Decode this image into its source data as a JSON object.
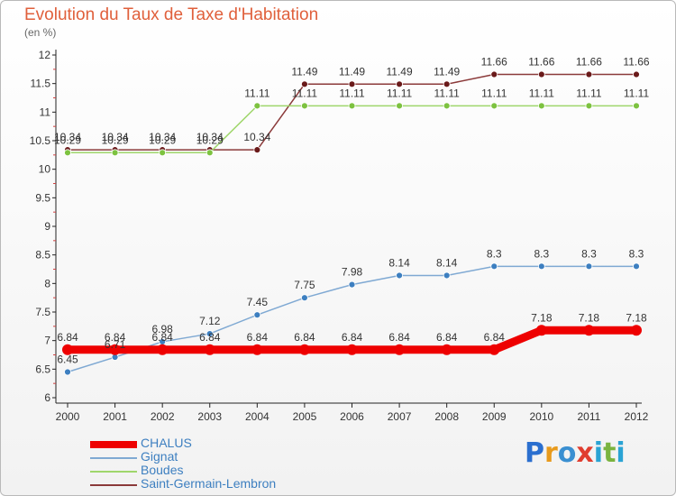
{
  "colors": {
    "title": "#e0603c",
    "axis": "#222222",
    "label": "#333333"
  },
  "logo": {
    "letters": [
      {
        "ch": "P",
        "color": "#2b6fcf"
      },
      {
        "ch": "r",
        "color": "#e89a1c"
      },
      {
        "ch": "o",
        "color": "#3a8fd1"
      },
      {
        "ch": "x",
        "color": "#e03d2f"
      },
      {
        "ch": "i",
        "color": "#2aa3d4"
      },
      {
        "ch": "t",
        "color": "#7ab33f"
      },
      {
        "ch": "i",
        "color": "#2aa3d4"
      }
    ]
  },
  "chart_data": {
    "type": "line",
    "title": "Evolution du Taux de Taxe d'Habitation",
    "subtitle": "(en %)",
    "x": [
      "2000",
      "2001",
      "2002",
      "2003",
      "2004",
      "2005",
      "2006",
      "2007",
      "2008",
      "2009",
      "2010",
      "2011",
      "2012"
    ],
    "ylim": [
      6,
      12
    ],
    "yticks": [
      "6",
      "6.5",
      "7",
      "7.5",
      "8",
      "8.5",
      "9",
      "9.5",
      "10",
      "10.5",
      "11",
      "11.5",
      "12"
    ],
    "legend_position": "bottom-left",
    "series": [
      {
        "name": "CHALUS",
        "color": "#ee0000",
        "marker_color": "#ee0000",
        "values": [
          6.84,
          6.84,
          6.84,
          6.84,
          6.84,
          6.84,
          6.84,
          6.84,
          6.84,
          6.84,
          7.18,
          7.18,
          7.18
        ],
        "labels": [
          "6.84",
          "6.84",
          "6.84",
          "6.84",
          "6.84",
          "6.84",
          "6.84",
          "6.84",
          "6.84",
          "6.84",
          "7.18",
          "7.18",
          "7.18"
        ],
        "thick": true
      },
      {
        "name": "Gignat",
        "color": "#7fa9d3",
        "marker_color": "#3d7fc0",
        "values": [
          6.45,
          6.71,
          6.98,
          7.12,
          7.45,
          7.75,
          7.98,
          8.14,
          8.14,
          8.3,
          8.3,
          8.3,
          8.3
        ],
        "labels": [
          "6.45",
          "6.71",
          "6.98",
          "7.12",
          "7.45",
          "7.75",
          "7.98",
          "8.14",
          "8.14",
          "8.3",
          "8.3",
          "8.3",
          "8.3"
        ],
        "thick": false
      },
      {
        "name": "Boudes",
        "color": "#9fd66b",
        "marker_color": "#7dc240",
        "values": [
          10.29,
          10.29,
          10.29,
          10.29,
          11.11,
          11.11,
          11.11,
          11.11,
          11.11,
          11.11,
          11.11,
          11.11,
          11.11
        ],
        "labels": [
          "10.29",
          "10.29",
          "10.29",
          "10.29",
          "11.11",
          "11.11",
          "11.11",
          "11.11",
          "11.11",
          "11.11",
          "11.11",
          "11.11",
          "11.11"
        ],
        "thick": false
      },
      {
        "name": "Saint-Germain-Lembron",
        "color": "#8b3a3a",
        "marker_color": "#6a1a1a",
        "values": [
          10.34,
          10.34,
          10.34,
          10.34,
          10.34,
          11.49,
          11.49,
          11.49,
          11.49,
          11.66,
          11.66,
          11.66,
          11.66
        ],
        "labels": [
          "10.34",
          "10.34",
          "10.34",
          "10.34",
          "10.34",
          "11.49",
          "11.49",
          "11.49",
          "11.49",
          "11.66",
          "11.66",
          "11.66",
          "11.66"
        ],
        "thick": false
      }
    ]
  }
}
